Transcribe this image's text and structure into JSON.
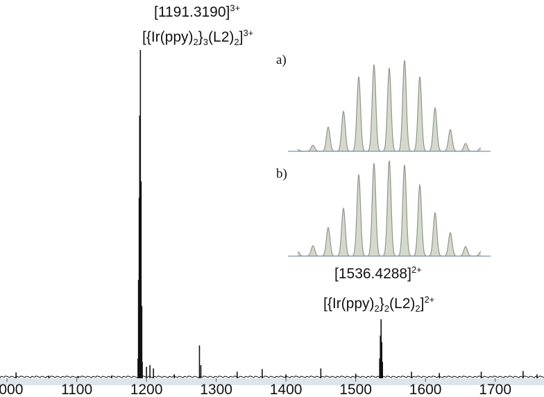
{
  "chart_data": [
    {
      "type": "line",
      "name": "main-spectrum",
      "xlim": [
        990,
        1770
      ],
      "ylim": [
        0,
        1
      ],
      "x_ticks": [
        1000,
        1100,
        1200,
        1300,
        1400,
        1500,
        1600,
        1700
      ],
      "tick_labels": [
        "1000",
        "1100",
        "1200",
        "1300",
        "1400",
        "1500",
        "1600",
        "1700"
      ],
      "grid": false,
      "peaks": [
        {
          "x": 1013,
          "y": 0.018
        },
        {
          "x": 1060,
          "y": 0.008
        },
        {
          "x": 1102,
          "y": 0.006
        },
        {
          "x": 1150,
          "y": 0.008
        },
        {
          "x": 1187.9,
          "y": 0.06
        },
        {
          "x": 1188.6,
          "y": 0.3
        },
        {
          "x": 1189.6,
          "y": 0.55
        },
        {
          "x": 1190.3,
          "y": 0.8
        },
        {
          "x": 1191.3,
          "y": 1.0
        },
        {
          "x": 1192.3,
          "y": 0.6
        },
        {
          "x": 1193.3,
          "y": 0.22
        },
        {
          "x": 1194.0,
          "y": 0.05
        },
        {
          "x": 1200,
          "y": 0.035
        },
        {
          "x": 1205,
          "y": 0.04
        },
        {
          "x": 1210,
          "y": 0.03
        },
        {
          "x": 1240,
          "y": 0.012
        },
        {
          "x": 1276,
          "y": 0.1
        },
        {
          "x": 1278,
          "y": 0.04
        },
        {
          "x": 1330,
          "y": 0.02
        },
        {
          "x": 1366,
          "y": 0.028
        },
        {
          "x": 1400,
          "y": 0.012
        },
        {
          "x": 1450,
          "y": 0.03
        },
        {
          "x": 1500,
          "y": 0.014
        },
        {
          "x": 1534.4,
          "y": 0.06
        },
        {
          "x": 1535.4,
          "y": 0.13
        },
        {
          "x": 1536.4,
          "y": 0.18
        },
        {
          "x": 1537.4,
          "y": 0.11
        },
        {
          "x": 1538.4,
          "y": 0.05
        },
        {
          "x": 1580,
          "y": 0.02
        },
        {
          "x": 1620,
          "y": 0.016
        },
        {
          "x": 1680,
          "y": 0.02
        },
        {
          "x": 1740,
          "y": 0.022
        },
        {
          "x": 1760,
          "y": 0.012
        }
      ],
      "annotations": [
        {
          "x": 1191.319,
          "mz_text": "[1191.3190]",
          "charge": "3+",
          "formula": [
            "[{Ir(ppy)",
            "2",
            "}",
            "3",
            "(L2)",
            "2",
            "]",
            "3+"
          ]
        },
        {
          "x": 1536.4288,
          "mz_text": "[1536.4288]",
          "charge": "2+",
          "formula": [
            "[{Ir(ppy)",
            "2",
            "}",
            "2",
            "(L2)",
            "2",
            "]",
            "2+"
          ]
        }
      ]
    },
    {
      "type": "line",
      "name": "inset-a",
      "label": "a)",
      "peaks": [
        0.02,
        0.07,
        0.28,
        0.46,
        0.86,
        1.0,
        0.96,
        1.05,
        0.86,
        0.5,
        0.25,
        0.09,
        0.04
      ]
    },
    {
      "type": "area",
      "name": "inset-b",
      "label": "b)",
      "peaks": [
        0.05,
        0.12,
        0.33,
        0.55,
        0.94,
        1.07,
        1.1,
        1.05,
        0.82,
        0.5,
        0.27,
        0.11,
        0.05
      ]
    }
  ],
  "colors": {
    "spectrum": "#111111",
    "inset_fill": "#d5d9cc",
    "inset_stroke": "#8f968a",
    "inset_baseline": "#7d92ad",
    "axis_band": "#dde4ea"
  }
}
